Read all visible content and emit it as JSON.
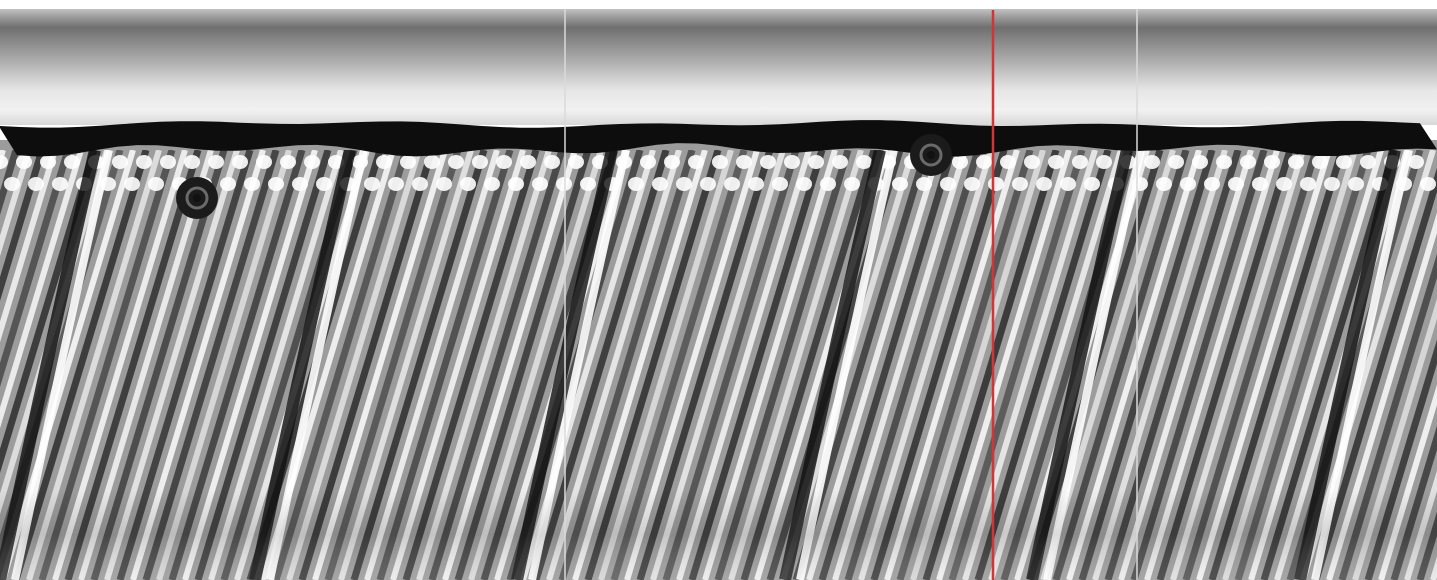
{
  "radargram": {
    "trace_markers": [
      {
        "name": "trace-marker-1"
      },
      {
        "name": "trace-marker-2"
      }
    ],
    "cursor": {
      "color": "#d4333a"
    },
    "anomalies": [
      {
        "name": "hyperbola-1"
      },
      {
        "name": "hyperbola-2"
      },
      {
        "name": "hyperbola-3"
      },
      {
        "name": "hyperbola-4"
      },
      {
        "name": "hyperbola-5"
      },
      {
        "name": "hyperbola-6"
      }
    ],
    "palette": {
      "background": "#ffffff",
      "dark": "#111111",
      "mid": "#8a8a8a",
      "light": "#f2f2f2"
    }
  }
}
